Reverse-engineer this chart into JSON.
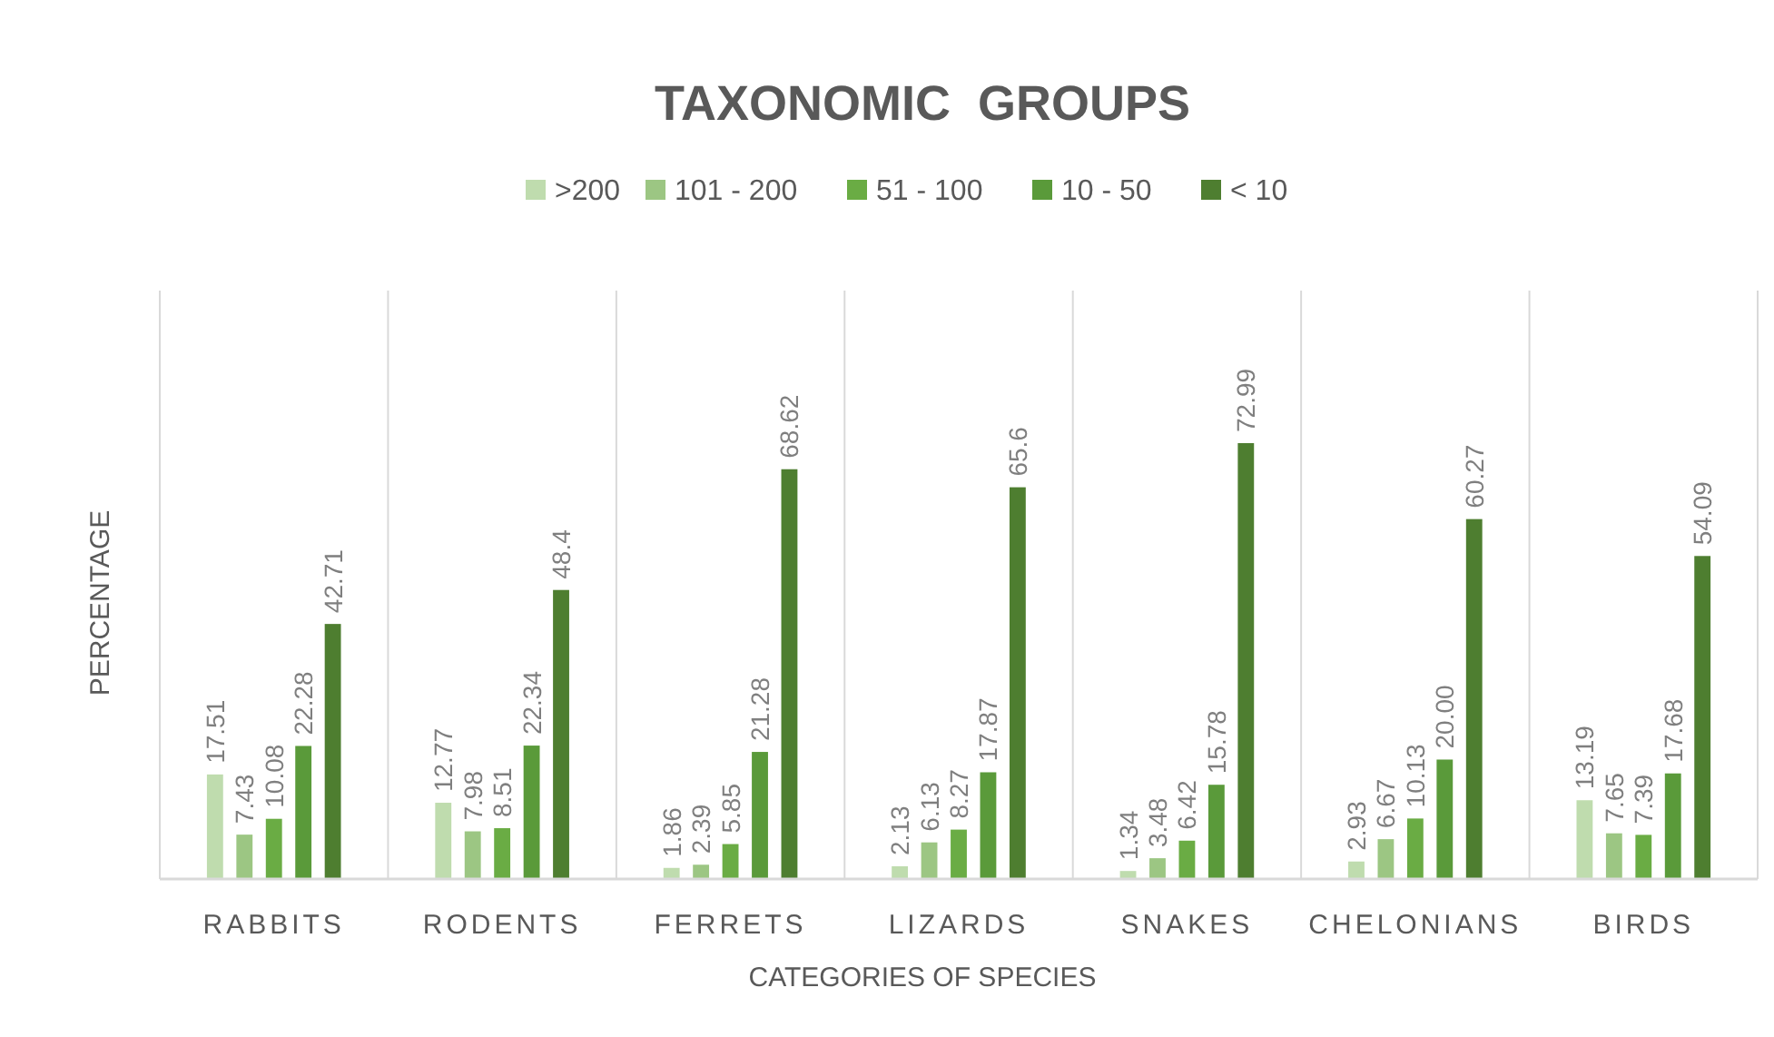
{
  "chart_data": {
    "type": "bar",
    "title": "TAXONOMIC  GROUPS",
    "xlabel": "CATEGORIES OF SPECIES",
    "ylabel": "PERCENTAGE",
    "legend": "top",
    "grid": "x",
    "categories": [
      "RABBITS",
      "RODENTS",
      "FERRETS",
      "LIZARDS",
      "SNAKES",
      "CHELONIANS",
      "BIRDS"
    ],
    "series": [
      {
        "name": ">200",
        "color": "#bfdcae",
        "values": [
          17.51,
          12.77,
          1.86,
          2.13,
          1.34,
          2.93,
          13.19
        ],
        "value_labels": [
          "17.51",
          "12.77",
          "1.86",
          "2.13",
          "1.34",
          "2.93",
          "13.19"
        ]
      },
      {
        "name": "101 - 200",
        "color": "#9cc683",
        "values": [
          7.43,
          7.98,
          2.39,
          6.13,
          3.48,
          6.67,
          7.65
        ],
        "value_labels": [
          "7.43",
          "7.98",
          "2.39",
          "6.13",
          "3.48",
          "6.67",
          "7.65"
        ]
      },
      {
        "name": "51 - 100",
        "color": "#6aac44",
        "values": [
          10.08,
          8.51,
          5.85,
          8.27,
          6.42,
          10.13,
          7.39
        ],
        "value_labels": [
          "10.08",
          "8.51",
          "5.85",
          "8.27",
          "6.42",
          "10.13",
          "7.39"
        ]
      },
      {
        "name": "10 - 50",
        "color": "#5a9a3a",
        "values": [
          22.28,
          22.34,
          21.28,
          17.87,
          15.78,
          20.0,
          17.68
        ],
        "value_labels": [
          "22.28",
          "22.34",
          "21.28",
          "17.87",
          "15.78",
          "20.00",
          "17.68"
        ]
      },
      {
        "name": "< 10",
        "color": "#4e7e30",
        "values": [
          42.71,
          48.4,
          68.62,
          65.6,
          72.99,
          60.27,
          54.09
        ],
        "value_labels": [
          "42.71",
          "48.4",
          "68.62",
          "65.6",
          "72.99",
          "60.27",
          "54.09"
        ]
      }
    ]
  }
}
